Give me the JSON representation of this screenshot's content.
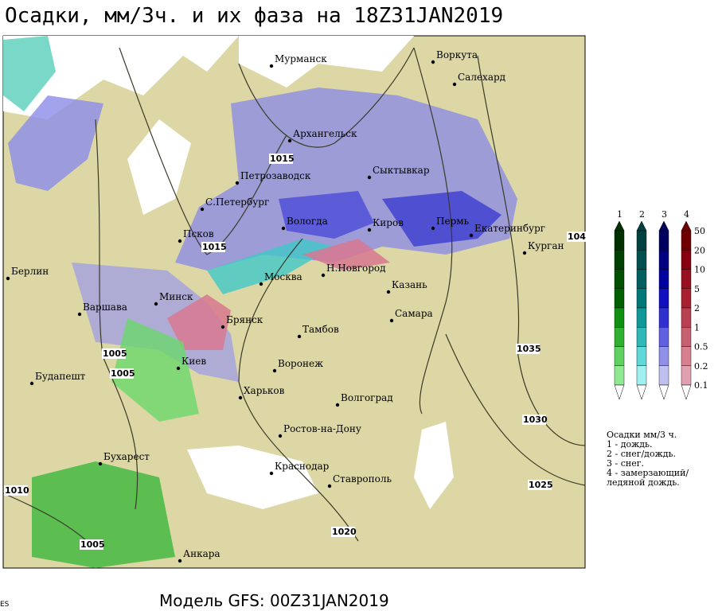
{
  "header": {
    "title": "Осадки, мм/3ч. и их фаза на 18Z31JAN2019"
  },
  "cities": [
    "Мурманск",
    "Воркута",
    "Салехард",
    "Архангельск",
    "Сыктывкар",
    "Петрозаводск",
    "С.Петербург",
    "Вологда",
    "Киров",
    "Пермь",
    "Екатеринбург",
    "Курган",
    "Псков",
    "Берлин",
    "Москва",
    "Н.Новгород",
    "Казань",
    "Минск",
    "Варшава",
    "Брянск",
    "Самара",
    "Тамбов",
    "Киев",
    "Воронеж",
    "Будапешт",
    "Харьков",
    "Волгоград",
    "Ростов-на-Дону",
    "Бухарест",
    "Краснодар",
    "Ставрополь",
    "Анкара"
  ],
  "isobars": [
    "1015",
    "1015",
    "1005",
    "1005",
    "1010",
    "1005",
    "1020",
    "1025",
    "1030",
    "1035",
    "104"
  ],
  "legend": {
    "phases": [
      "1",
      "2",
      "3",
      "4"
    ],
    "levels": [
      "50",
      "20",
      "10",
      "5",
      "2",
      "1",
      "0.5",
      "0.2",
      "0.1"
    ],
    "caption": [
      "Осадки мм/3 ч.",
      "1 - дождь.",
      "2 - снег/дождь.",
      "3 - снег.",
      "4 - замерзающий/",
      "ледяной дождь."
    ]
  },
  "footer": {
    "model": "Модель GFS: 00Z31JAN2019",
    "corner": "ES"
  }
}
